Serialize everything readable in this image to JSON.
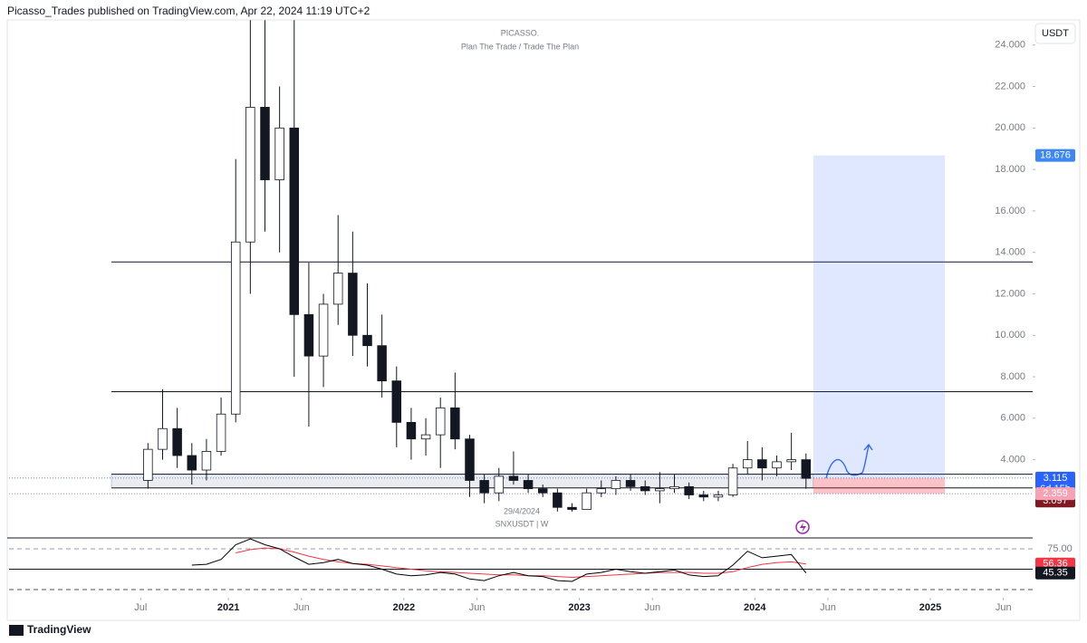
{
  "header": {
    "text": "Picasso_Trades published on TradingView.com, Apr 22, 2024 11:19 UTC+2"
  },
  "footer": {
    "text": "TradingView"
  },
  "chart_data": {
    "type": "candlestick",
    "title": "PICASSO.",
    "subtitle": "Plan The Trade / Trade The Plan",
    "symbol": "SNXUSDT | W",
    "date_label": "29/4/2024",
    "currency": "USDT",
    "x": [
      "2020-07",
      "2020-08",
      "2020-09",
      "2020-10",
      "2020-11",
      "2020-12",
      "2021-01",
      "2021-02",
      "2021-03",
      "2021-04",
      "2021-05",
      "2021-06",
      "2021-07",
      "2021-08",
      "2021-09",
      "2021-10",
      "2021-11",
      "2021-12",
      "2022-01",
      "2022-02",
      "2022-03",
      "2022-04",
      "2022-05",
      "2022-06",
      "2022-07",
      "2022-08",
      "2022-09",
      "2022-10",
      "2022-11",
      "2022-12",
      "2023-01",
      "2023-02",
      "2023-03",
      "2023-04",
      "2023-05",
      "2023-06",
      "2023-07",
      "2023-08",
      "2023-09",
      "2023-10",
      "2023-11",
      "2023-12",
      "2024-01",
      "2024-02",
      "2024-03",
      "2024-04"
    ],
    "open": [
      3.0,
      4.5,
      5.5,
      4.2,
      3.5,
      4.4,
      6.2,
      14.5,
      21.0,
      17.5,
      20.0,
      11.0,
      9.0,
      11.5,
      13.0,
      10.0,
      9.5,
      7.8,
      5.8,
      5.0,
      5.2,
      6.5,
      5.0,
      3.0,
      2.4,
      3.2,
      3.0,
      2.6,
      2.4,
      1.7,
      1.6,
      2.4,
      2.6,
      3.0,
      2.7,
      2.5,
      2.6,
      2.7,
      2.3,
      2.2,
      2.3,
      3.6,
      4.0,
      3.6,
      3.9,
      4.0
    ],
    "high": [
      4.8,
      7.4,
      6.5,
      4.8,
      5.0,
      7.0,
      18.5,
      25.2,
      25.2,
      22.0,
      25.2,
      13.5,
      12.0,
      15.8,
      15.0,
      12.5,
      11.0,
      8.5,
      6.5,
      6.0,
      7.0,
      8.2,
      5.2,
      3.3,
      3.6,
      4.4,
      3.3,
      2.8,
      2.6,
      1.9,
      2.6,
      3.0,
      3.2,
      3.3,
      3.0,
      3.4,
      3.3,
      2.9,
      2.5,
      2.5,
      3.8,
      4.9,
      4.6,
      4.2,
      5.3,
      4.3
    ],
    "low": [
      2.6,
      4.0,
      3.6,
      2.8,
      3.0,
      4.2,
      5.8,
      12.0,
      15.0,
      14.0,
      8.0,
      5.6,
      7.5,
      10.5,
      9.0,
      8.5,
      7.0,
      4.6,
      4.0,
      4.2,
      3.6,
      4.5,
      2.2,
      1.9,
      2.0,
      2.8,
      2.4,
      2.2,
      1.5,
      1.5,
      1.6,
      2.2,
      2.3,
      2.5,
      2.3,
      1.9,
      2.4,
      2.1,
      2.0,
      2.0,
      2.2,
      3.3,
      3.0,
      3.2,
      3.5,
      2.6
    ],
    "close": [
      4.5,
      5.5,
      4.2,
      3.5,
      4.4,
      6.2,
      14.5,
      21.0,
      17.5,
      20.0,
      11.0,
      9.0,
      11.5,
      13.0,
      10.0,
      9.5,
      7.8,
      5.8,
      5.0,
      5.2,
      6.5,
      5.0,
      3.0,
      2.4,
      3.2,
      3.0,
      2.6,
      2.4,
      1.7,
      1.6,
      2.4,
      2.6,
      3.0,
      2.7,
      2.5,
      2.6,
      2.7,
      2.3,
      2.2,
      2.3,
      3.6,
      4.0,
      3.6,
      3.9,
      4.0,
      3.1
    ],
    "up_color": "#ffffff",
    "down_color": "#131722",
    "xlim": [
      "2019-10",
      "2025-08"
    ],
    "xticks": [
      {
        "value": "2020-07",
        "label": "Jul"
      },
      {
        "value": "2021-01",
        "label": "2021"
      },
      {
        "value": "2021-06",
        "label": "Jun"
      },
      {
        "value": "2022-01",
        "label": "2022"
      },
      {
        "value": "2022-06",
        "label": "Jun"
      },
      {
        "value": "2023-01",
        "label": "2023"
      },
      {
        "value": "2023-06",
        "label": "Jun"
      },
      {
        "value": "2024-01",
        "label": "2024"
      },
      {
        "value": "2024-06",
        "label": "Jun"
      },
      {
        "value": "2025-01",
        "label": "2025"
      },
      {
        "value": "2025-06",
        "label": "Jun"
      }
    ],
    "ylim": [
      0.4,
      25.3
    ],
    "yticks": [
      {
        "value": 4,
        "label": "4.000"
      },
      {
        "value": 6,
        "label": "6.000"
      },
      {
        "value": 8,
        "label": "8.000"
      },
      {
        "value": 10,
        "label": "10.000"
      },
      {
        "value": 12,
        "label": "12.000"
      },
      {
        "value": 14,
        "label": "14.000"
      },
      {
        "value": 16,
        "label": "16.000"
      },
      {
        "value": 18,
        "label": "18.000"
      },
      {
        "value": 20,
        "label": "20.000"
      },
      {
        "value": 22,
        "label": "22.000"
      },
      {
        "value": 24,
        "label": "24.000"
      }
    ],
    "levels": [
      13.54,
      7.28
    ],
    "zone": {
      "start": "2020-05",
      "end": "2024-05",
      "low": 2.64,
      "high": 3.3
    },
    "position": {
      "start": "2024-05",
      "end": "2025-02",
      "target": 18.676,
      "entry": 3.115,
      "stop": 2.359,
      "target_label": "18.676",
      "entry_label": "3.115",
      "stop_label": "2.359",
      "countdown": "6d 15h"
    },
    "last_price": {
      "value": 3.097,
      "label": "3.097"
    },
    "rsi": {
      "values": [
        null,
        null,
        null,
        55,
        56,
        62,
        80,
        88,
        80,
        75,
        65,
        56,
        58,
        62,
        57,
        55,
        50,
        44,
        42,
        43,
        46,
        44,
        38,
        36,
        42,
        46,
        42,
        41,
        36,
        35,
        44,
        46,
        50,
        47,
        45,
        47,
        49,
        43,
        41,
        42,
        55,
        72,
        64,
        66,
        68,
        45.35
      ],
      "ma": [
        null,
        null,
        null,
        null,
        null,
        null,
        70,
        74,
        76,
        75,
        71,
        66,
        62,
        59,
        57,
        56,
        54,
        52,
        50,
        48,
        47,
        46,
        45,
        44,
        43,
        43,
        42,
        42,
        41,
        40,
        41,
        42,
        43,
        44,
        45,
        46,
        46,
        46,
        45,
        45,
        47,
        52,
        56,
        58,
        59,
        56.36
      ],
      "ylim": [
        20.6,
        87.2
      ],
      "yticks": [
        {
          "value": 75,
          "label": "75.00"
        }
      ],
      "levels": [
        50,
        25
      ],
      "value_label": "45.35",
      "ma_label": "56.36",
      "color": "#000000",
      "ma_color": "#f23645"
    }
  }
}
